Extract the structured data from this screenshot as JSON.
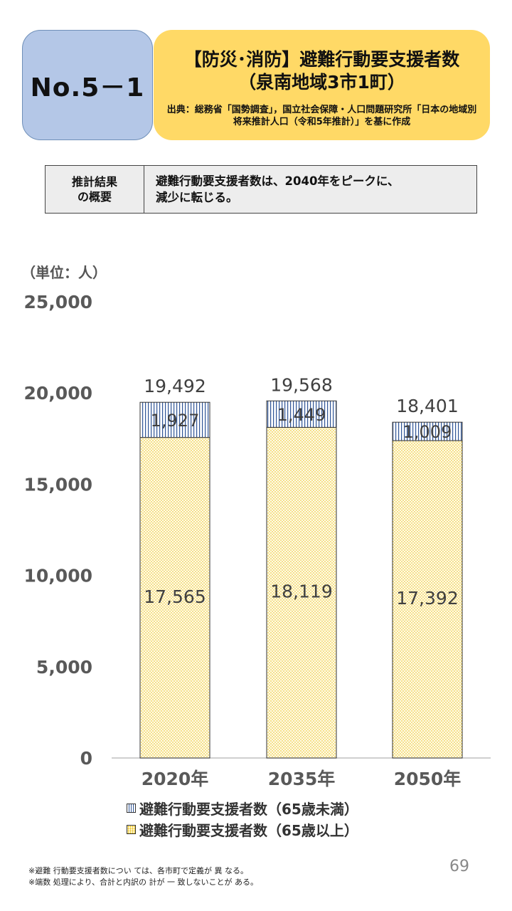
{
  "header": {
    "number": "No.5－1",
    "title_line1": "【防災･消防】避難行動要支援者数",
    "title_line2": "（泉南地域3市1町）",
    "source": "出典：総務省「国勢調査」，国立社会保障・人口問題研究所「日本の地域別将来推計人口（令和5年推計）」を基に作成"
  },
  "summary": {
    "head_line1": "推計結果",
    "head_line2": "の概要",
    "body_line1": "避難行動要支援者数は、2040年をピークに、",
    "body_line2": "減少に転じる。"
  },
  "unit_label": "（単位：人）",
  "chart_data": {
    "type": "bar",
    "stacked": true,
    "categories": [
      "2020年",
      "2035年",
      "2050年"
    ],
    "series": [
      {
        "name": "避難行動要支援者数（65歳以上）",
        "values": [
          17565,
          18119,
          17392
        ],
        "color": "#fff2cc"
      },
      {
        "name": "避難行動要支援者数（65歳未満）",
        "values": [
          1927,
          1449,
          1009
        ],
        "color": "#dae3f3"
      }
    ],
    "totals": [
      19492,
      19568,
      18401
    ],
    "total_labels": [
      "19,492",
      "19,568",
      "18,401"
    ],
    "upper_labels": [
      "1,927",
      "1,449",
      "1,009"
    ],
    "lower_labels": [
      "17,565",
      "18,119",
      "17,392"
    ],
    "ylim": [
      0,
      25000
    ],
    "yticks": [
      0,
      5000,
      10000,
      15000,
      20000,
      25000
    ],
    "ytick_labels": [
      "0",
      "5,000",
      "10,000",
      "15,000",
      "20,000",
      "25,000"
    ],
    "legend_position": "bottom",
    "grid": false
  },
  "legend": {
    "item1": "避難行動要支援者数（65歳未満）",
    "item2": "避難行動要支援者数（65歳以上）"
  },
  "page_number": "69",
  "notes": {
    "line1": "※避難 行動要支援者数につい ては、各市町で定義が 異 なる。",
    "line2": "※端数 処理により、合計と内訳の 計が 一 致しないことが ある。"
  }
}
